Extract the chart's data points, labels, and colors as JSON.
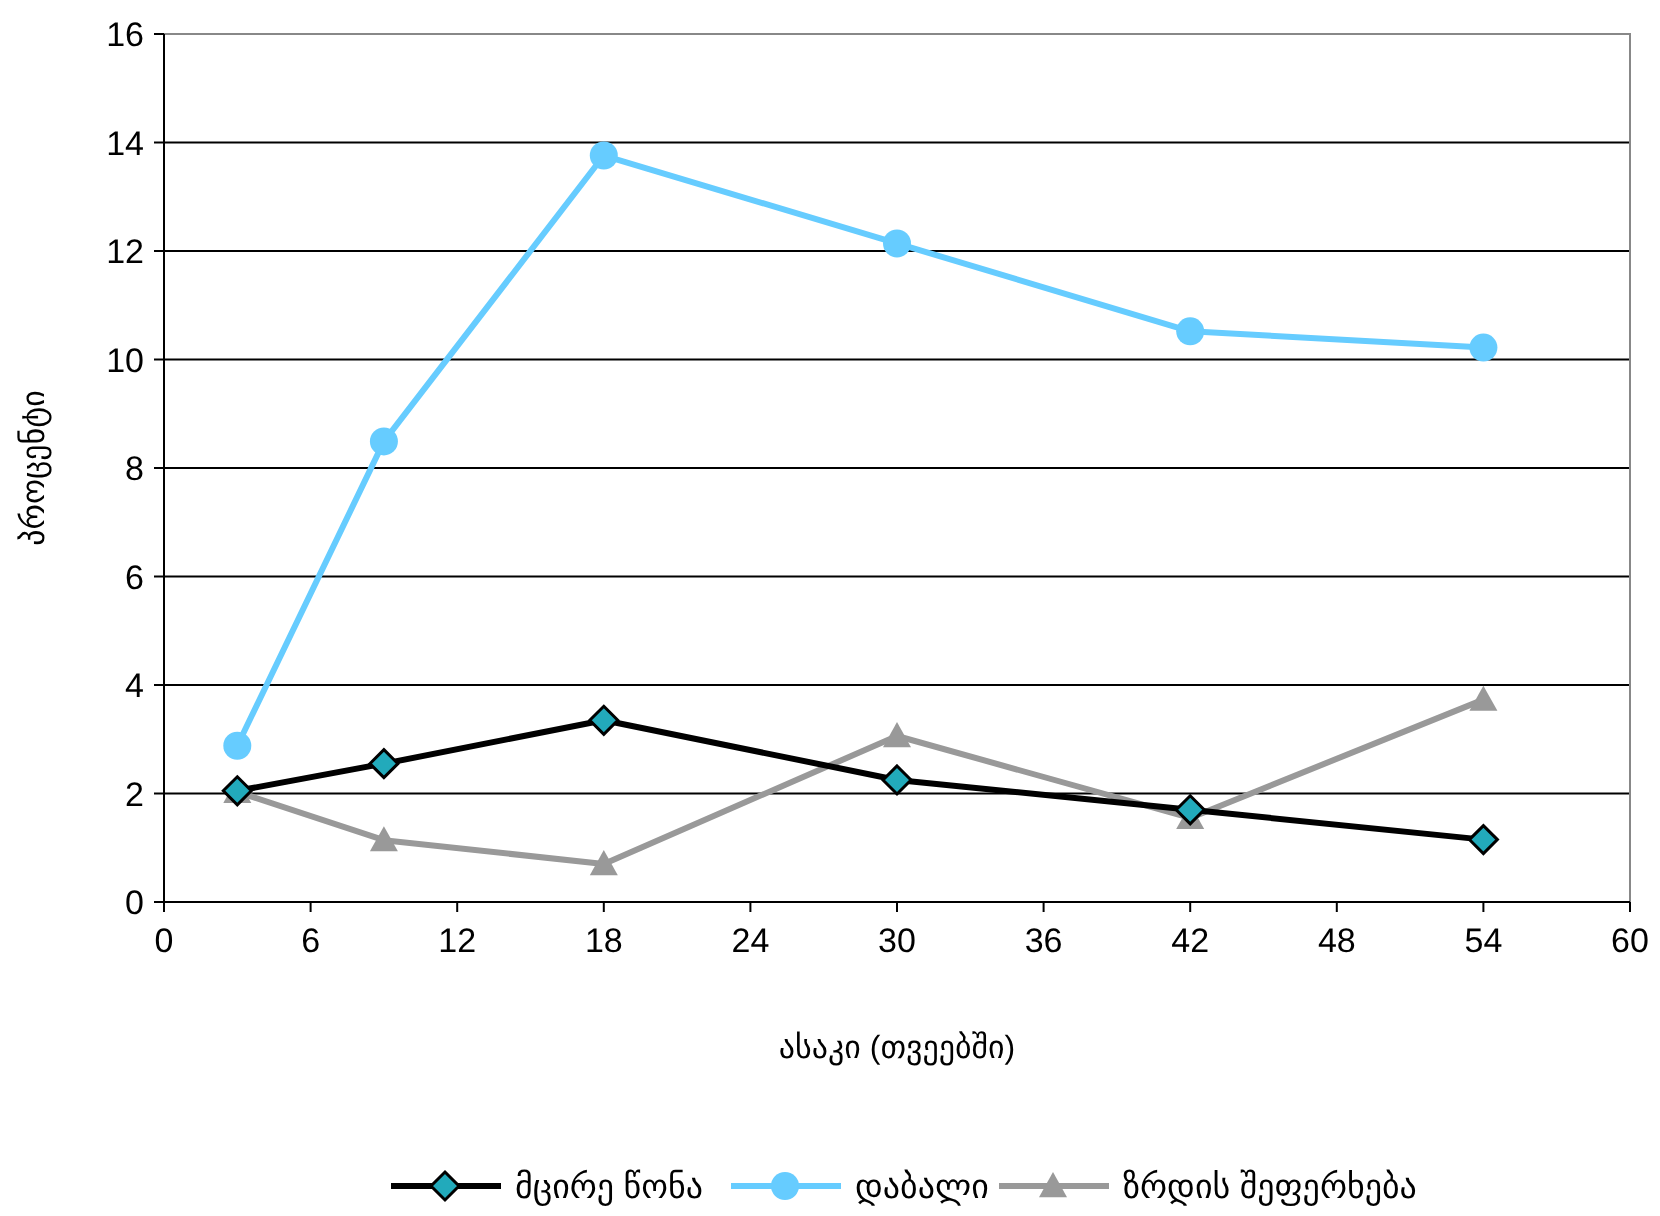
{
  "chart_data": {
    "type": "line",
    "xlabel": "ასაკი (თვეებში)",
    "ylabel": "პროცენტი",
    "xlim": [
      0,
      60
    ],
    "xticks": [
      0,
      6,
      12,
      18,
      24,
      30,
      36,
      42,
      48,
      54,
      60
    ],
    "ylim": [
      0,
      16
    ],
    "yticks": [
      0,
      2,
      4,
      6,
      8,
      10,
      12,
      14,
      16
    ],
    "grid": "y",
    "legend": "bottom",
    "x": [
      3,
      9,
      18,
      30,
      42,
      54
    ],
    "series": [
      {
        "name": "მცირე წონა",
        "color": "#000000",
        "marker": "diamond",
        "values": [
          2.05,
          2.55,
          3.35,
          2.25,
          1.7,
          1.15
        ]
      },
      {
        "name": "დაბალი",
        "color": "#66ccff",
        "marker": "circle",
        "values": [
          2.88,
          8.49,
          13.76,
          12.14,
          10.52,
          10.22
        ]
      },
      {
        "name": "ზრდის შეფერხება",
        "color": "#999999",
        "marker": "triangle",
        "values": [
          2.03,
          1.14,
          0.7,
          3.06,
          1.55,
          3.73
        ]
      }
    ]
  }
}
